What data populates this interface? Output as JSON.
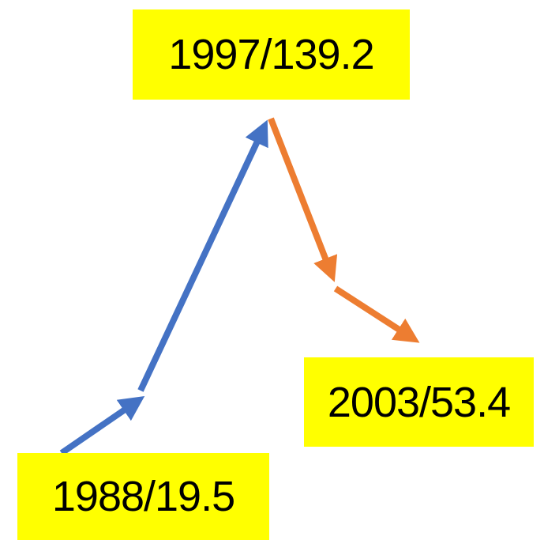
{
  "labels": [
    "1997/139.2",
    "2003/53.4",
    "1988/19.5"
  ]
}
